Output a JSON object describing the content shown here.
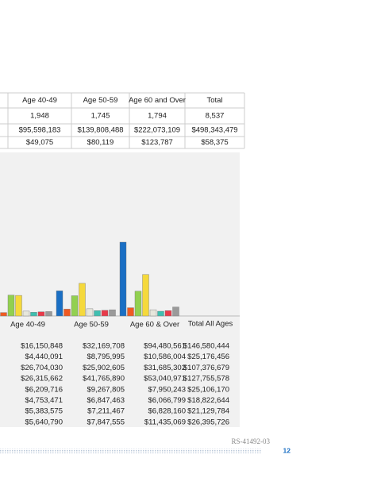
{
  "top_table": {
    "header": [
      "Age 40-49",
      "Age 50-59",
      "Age 60 and Over",
      "Total"
    ],
    "rows": [
      [
        "1,948",
        "1,745",
        "1,794",
        "8,537"
      ],
      [
        "$95,598,183",
        "$139,808,488",
        "$222,073,109",
        "$498,343,479"
      ],
      [
        "$49,075",
        "$80,119",
        "$123,787",
        "$58,375"
      ]
    ]
  },
  "chart_data": {
    "type": "bar",
    "categories": [
      "Age 40-49",
      "Age 50-59",
      "Age 60 & Over"
    ],
    "total_label": "Total All Ages",
    "series": [
      {
        "color": "#1a6fc4",
        "values": [
          16150848,
          32169708,
          94480561
        ],
        "value_labels": [
          "$16,150,848",
          "$32,169,708",
          "$94,480,561"
        ],
        "total": "$146,580,444"
      },
      {
        "color": "#f05a22",
        "values": [
          4440091,
          8795995,
          10586004
        ],
        "value_labels": [
          "$4,440,091",
          "$8,795,995",
          "$10,586,004"
        ],
        "total": "$25,176,456"
      },
      {
        "color": "#92d050",
        "values": [
          26704030,
          25902605,
          31685302
        ],
        "value_labels": [
          "$26,704,030",
          "$25,902,605",
          "$31,685,302"
        ],
        "total": "$107,376,679"
      },
      {
        "color": "#f5d93c",
        "values": [
          26315662,
          41765890,
          53040971
        ],
        "value_labels": [
          "$26,315,662",
          "$41,765,890",
          "$53,040,971"
        ],
        "total": "$127,755,578"
      },
      {
        "color": "#e6e6dc",
        "values": [
          6209716,
          9267805,
          7950243
        ],
        "value_labels": [
          "$6,209,716",
          "$9,267,805",
          "$7,950,243"
        ],
        "total": "$25,106,170"
      },
      {
        "color": "#3fbfb0",
        "values": [
          4753471,
          6847463,
          6066799
        ],
        "value_labels": [
          "$4,753,471",
          "$6,847,463",
          "$6,066,799"
        ],
        "total": "$18,822,644"
      },
      {
        "color": "#e83a4a",
        "values": [
          5383575,
          7211467,
          6828160
        ],
        "value_labels": [
          "$5,383,575",
          "$7,211,467",
          "$6,828,160"
        ],
        "total": "$21,129,784"
      },
      {
        "color": "#9a9a9a",
        "values": [
          5640790,
          7847555,
          11435069
        ],
        "value_labels": [
          "$5,640,790",
          "$7,847,555",
          "$11,435,069"
        ],
        "total": "$26,395,726"
      }
    ]
  },
  "footer": {
    "code": "RS-41492-03",
    "page": "12"
  }
}
